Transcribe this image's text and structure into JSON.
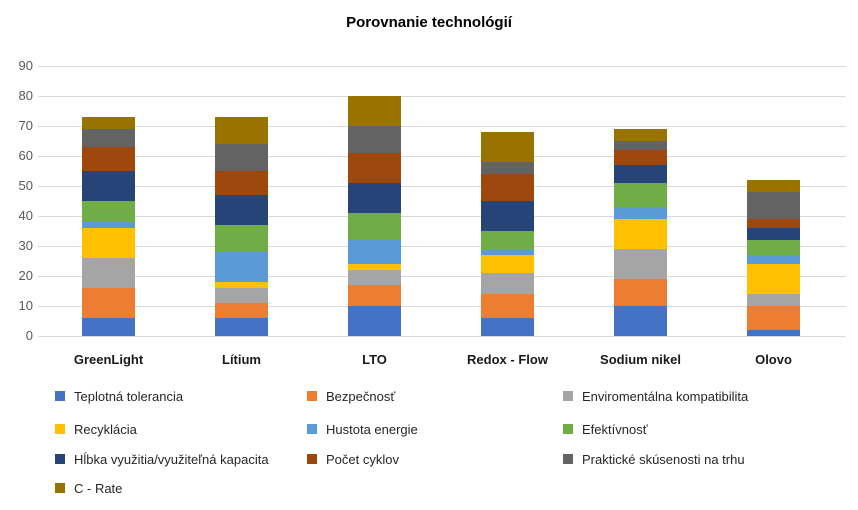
{
  "title": "Porovnanie technológií",
  "chart_data": {
    "type": "bar",
    "stacked": true,
    "title": "Porovnanie technológií",
    "categories": [
      "GreenLight",
      "Lítium",
      "LTO",
      "Redox - Flow",
      "Sodium nikel",
      "Olovo"
    ],
    "series": [
      {
        "name": "Teplotná tolerancia",
        "color": "#4472C4",
        "values": [
          6,
          6,
          10,
          6,
          10,
          2
        ]
      },
      {
        "name": "Bezpečnosť",
        "color": "#ED7D31",
        "values": [
          10,
          5,
          7,
          8,
          9,
          8
        ]
      },
      {
        "name": "Enviromentálna kompatibilita",
        "color": "#A5A5A5",
        "values": [
          10,
          5,
          5,
          7,
          10,
          4
        ]
      },
      {
        "name": "Recyklácia",
        "color": "#FFC000",
        "values": [
          10,
          2,
          2,
          6,
          10,
          10
        ]
      },
      {
        "name": "Hustota energie",
        "color": "#5B9BD5",
        "values": [
          2,
          10,
          8,
          2,
          4,
          3
        ]
      },
      {
        "name": "Efektívnosť",
        "color": "#70AD47",
        "values": [
          7,
          9,
          9,
          6,
          8,
          5
        ]
      },
      {
        "name": "Hĺbka využitia/využiteľná kapacita",
        "color": "#264478",
        "values": [
          10,
          10,
          10,
          10,
          6,
          4
        ]
      },
      {
        "name": "Počet cyklov",
        "color": "#9E480E",
        "values": [
          8,
          8,
          10,
          9,
          5,
          3
        ]
      },
      {
        "name": "Praktické skúsenosti na trhu",
        "color": "#636363",
        "values": [
          6,
          9,
          9,
          4,
          3,
          9
        ]
      },
      {
        "name": "C - Rate",
        "color": "#997300",
        "values": [
          4,
          9,
          10,
          10,
          4,
          4
        ]
      }
    ],
    "totals": [
      73,
      73,
      80,
      68,
      69,
      52
    ],
    "ylim": [
      0,
      90
    ],
    "yticks": [
      0,
      10,
      20,
      30,
      40,
      50,
      60,
      70,
      80,
      90
    ],
    "grid": true,
    "gridline_color": "#D9D9D9",
    "legend_position": "bottom",
    "legend_columns": 3
  }
}
